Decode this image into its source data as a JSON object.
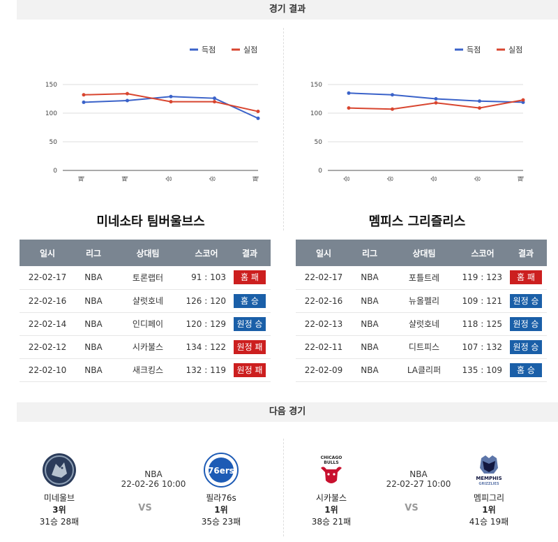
{
  "sections": {
    "results_title": "경기 결과",
    "next_title": "다음 경기"
  },
  "legend": {
    "scored": "득점",
    "conceded": "실점"
  },
  "colors": {
    "scored": "#3a62c9",
    "conceded": "#d8452f",
    "win": "#1a5fa8",
    "loss": "#cc1f1f",
    "header": "#7a8591"
  },
  "chart_data": [
    {
      "type": "line",
      "categories": [
        "패",
        "패",
        "승",
        "승",
        "패"
      ],
      "series": [
        {
          "name": "득점",
          "values": [
            119,
            122,
            129,
            126,
            91
          ]
        },
        {
          "name": "실점",
          "values": [
            132,
            134,
            120,
            120,
            103
          ]
        }
      ],
      "ylim": [
        0,
        150
      ],
      "yticks": [
        0,
        50,
        100,
        150
      ],
      "grid": true,
      "legend": "top-right"
    },
    {
      "type": "line",
      "categories": [
        "승",
        "승",
        "승",
        "승",
        "패"
      ],
      "series": [
        {
          "name": "득점",
          "values": [
            135,
            132,
            125,
            121,
            119
          ]
        },
        {
          "name": "실점",
          "values": [
            109,
            107,
            118,
            109,
            123
          ]
        }
      ],
      "ylim": [
        0,
        150
      ],
      "yticks": [
        0,
        50,
        100,
        150
      ],
      "grid": true,
      "legend": "top-right"
    }
  ],
  "table_headers": [
    "일시",
    "리그",
    "상대팀",
    "스코어",
    "결과"
  ],
  "teams": [
    {
      "name": "미네소타 팀버울브스",
      "games": [
        {
          "date": "22-02-17",
          "league": "NBA",
          "opponent": "토론랩터",
          "score_a": "91",
          "score_b": "103",
          "result": "홈 패",
          "win": false
        },
        {
          "date": "22-02-16",
          "league": "NBA",
          "opponent": "샬럿호네",
          "score_a": "126",
          "score_b": "120",
          "result": "홈 승",
          "win": true
        },
        {
          "date": "22-02-14",
          "league": "NBA",
          "opponent": "인디페이",
          "score_a": "120",
          "score_b": "129",
          "result": "원정 승",
          "win": true
        },
        {
          "date": "22-02-12",
          "league": "NBA",
          "opponent": "시카불스",
          "score_a": "134",
          "score_b": "122",
          "result": "원정 패",
          "win": false
        },
        {
          "date": "22-02-10",
          "league": "NBA",
          "opponent": "새크킹스",
          "score_a": "132",
          "score_b": "119",
          "result": "원정 패",
          "win": false
        }
      ]
    },
    {
      "name": "멤피스 그리즐리스",
      "games": [
        {
          "date": "22-02-17",
          "league": "NBA",
          "opponent": "포틀트레",
          "score_a": "119",
          "score_b": "123",
          "result": "홈 패",
          "win": false
        },
        {
          "date": "22-02-16",
          "league": "NBA",
          "opponent": "뉴올펠리",
          "score_a": "109",
          "score_b": "121",
          "result": "원정 승",
          "win": true
        },
        {
          "date": "22-02-13",
          "league": "NBA",
          "opponent": "샬럿호네",
          "score_a": "118",
          "score_b": "125",
          "result": "원정 승",
          "win": true
        },
        {
          "date": "22-02-11",
          "league": "NBA",
          "opponent": "디트피스",
          "score_a": "107",
          "score_b": "132",
          "result": "원정 승",
          "win": true
        },
        {
          "date": "22-02-09",
          "league": "NBA",
          "opponent": "LA클리퍼",
          "score_a": "135",
          "score_b": "109",
          "result": "홈 승",
          "win": true
        }
      ]
    }
  ],
  "next_games": [
    {
      "league": "NBA",
      "datetime": "22-02-26 10:00",
      "vs": "VS",
      "home": {
        "name": "미네울브",
        "rank": "3위",
        "record": "31승 28패",
        "logo": "timberwolves-logo"
      },
      "away": {
        "name": "필라76s",
        "rank": "1위",
        "record": "35승 23패",
        "logo": "76ers-logo",
        "logo_text": "76ers"
      }
    },
    {
      "league": "NBA",
      "datetime": "22-02-27 10:00",
      "vs": "VS",
      "home": {
        "name": "시카불스",
        "rank": "1위",
        "record": "38승 21패",
        "logo": "bulls-logo",
        "logo_text": "CHICAGO BULLS"
      },
      "away": {
        "name": "멤피그리",
        "rank": "1위",
        "record": "41승 19패",
        "logo": "grizzlies-logo",
        "logo_text": "MEMPHIS GRIZZLIES"
      }
    }
  ]
}
